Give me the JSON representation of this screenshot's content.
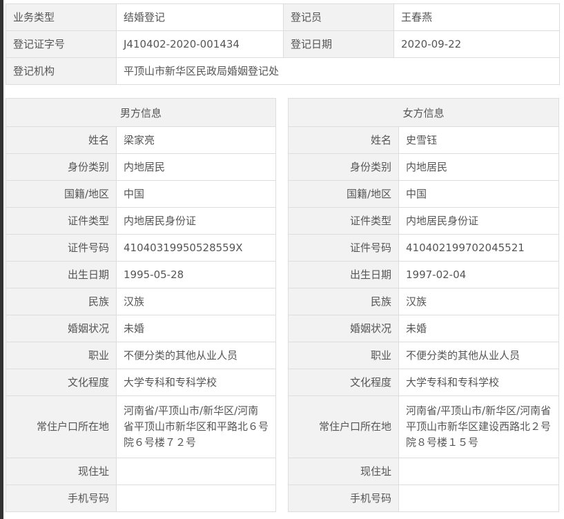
{
  "summary": {
    "business_type_label": "业务类型",
    "business_type": "结婚登记",
    "registrar_label": "登记员",
    "registrar": "王春燕",
    "cert_no_label": "登记证字号",
    "cert_no": "J410402-2020-001434",
    "reg_date_label": "登记日期",
    "reg_date": "2020-09-22",
    "agency_label": "登记机构",
    "agency": "平顶山市新华区民政局婚姻登记处"
  },
  "labels": [
    "姓名",
    "身份类别",
    "国籍/地区",
    "证件类型",
    "证件号码",
    "出生日期",
    "民族",
    "婚姻状况",
    "职业",
    "文化程度",
    "常住户口所在地",
    "现住址",
    "手机号码"
  ],
  "male": {
    "title": "男方信息",
    "values": [
      "梁家亮",
      "内地居民",
      "中国",
      "内地居民身份证",
      "41040319950528559X",
      "1995-05-28",
      "汉族",
      "未婚",
      "不便分类的其他从业人员",
      "大学专科和专科学校",
      "河南省/平顶山市/新华区/河南省平顶山市新华区和平路北６号院６号楼７２号",
      "",
      ""
    ]
  },
  "female": {
    "title": "女方信息",
    "values": [
      "史雪钰",
      "内地居民",
      "中国",
      "内地居民身份证",
      "410402199702045521",
      "1997-02-04",
      "汉族",
      "未婚",
      "不便分类的其他从业人员",
      "大学专科和专科学校",
      "河南省/平顶山市/新华区/河南省平顶山市新华区建设西路北２号院８号楼１５号",
      "",
      ""
    ]
  }
}
